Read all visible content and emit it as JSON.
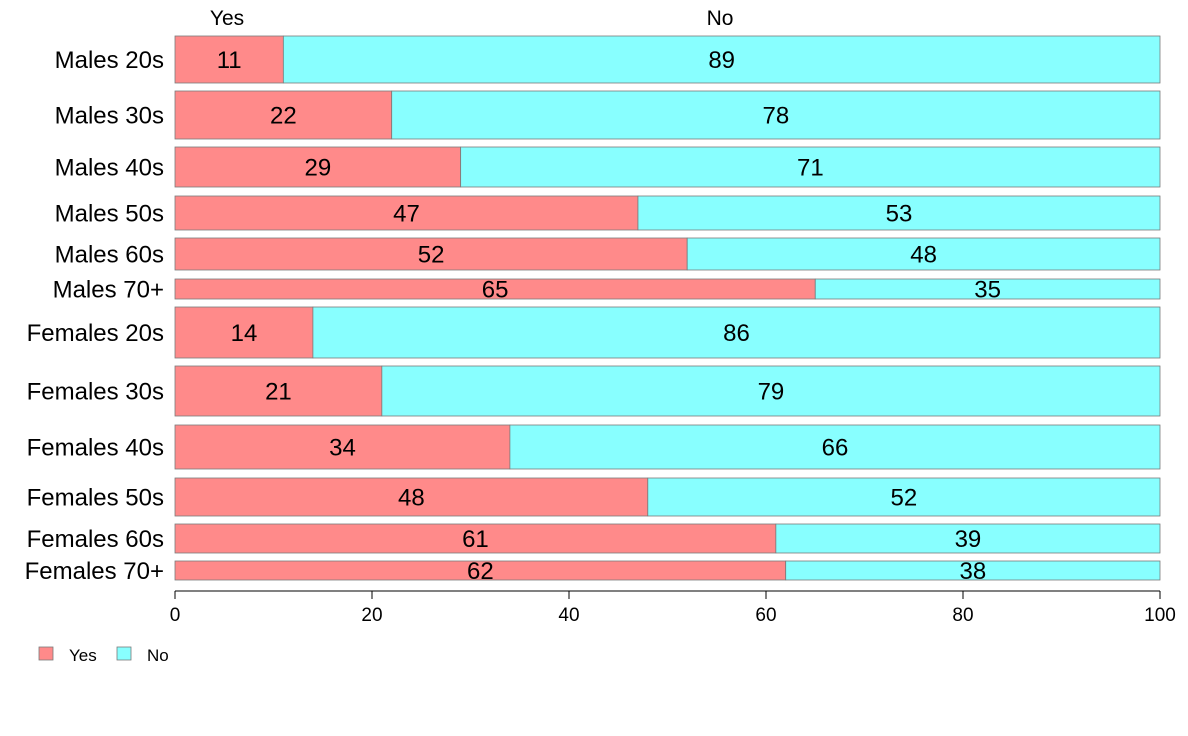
{
  "chart_data": {
    "type": "bar",
    "orientation": "horizontal",
    "stacked": true,
    "categories": [
      "Males 20s",
      "Males 30s",
      "Males 40s",
      "Males 50s",
      "Males 60s",
      "Males 70+",
      "Females 20s",
      "Females 30s",
      "Females 40s",
      "Females 50s",
      "Females 60s",
      "Females 70+"
    ],
    "series": [
      {
        "name": "Yes",
        "color": "#ff8a8a",
        "values": [
          11,
          22,
          29,
          47,
          52,
          65,
          14,
          21,
          34,
          48,
          61,
          62
        ]
      },
      {
        "name": "No",
        "color": "#88ffff",
        "values": [
          89,
          78,
          71,
          53,
          48,
          35,
          86,
          79,
          66,
          52,
          39,
          38
        ]
      }
    ],
    "top_labels": [
      "Yes",
      "No"
    ],
    "xlim": [
      0,
      100
    ],
    "xticks": [
      "0",
      "20",
      "40",
      "60",
      "80",
      "100"
    ],
    "legend": {
      "position": "bottom-left",
      "entries": [
        "Yes",
        "No"
      ]
    },
    "grid": false,
    "title": "",
    "xlabel": "",
    "ylabel": ""
  }
}
